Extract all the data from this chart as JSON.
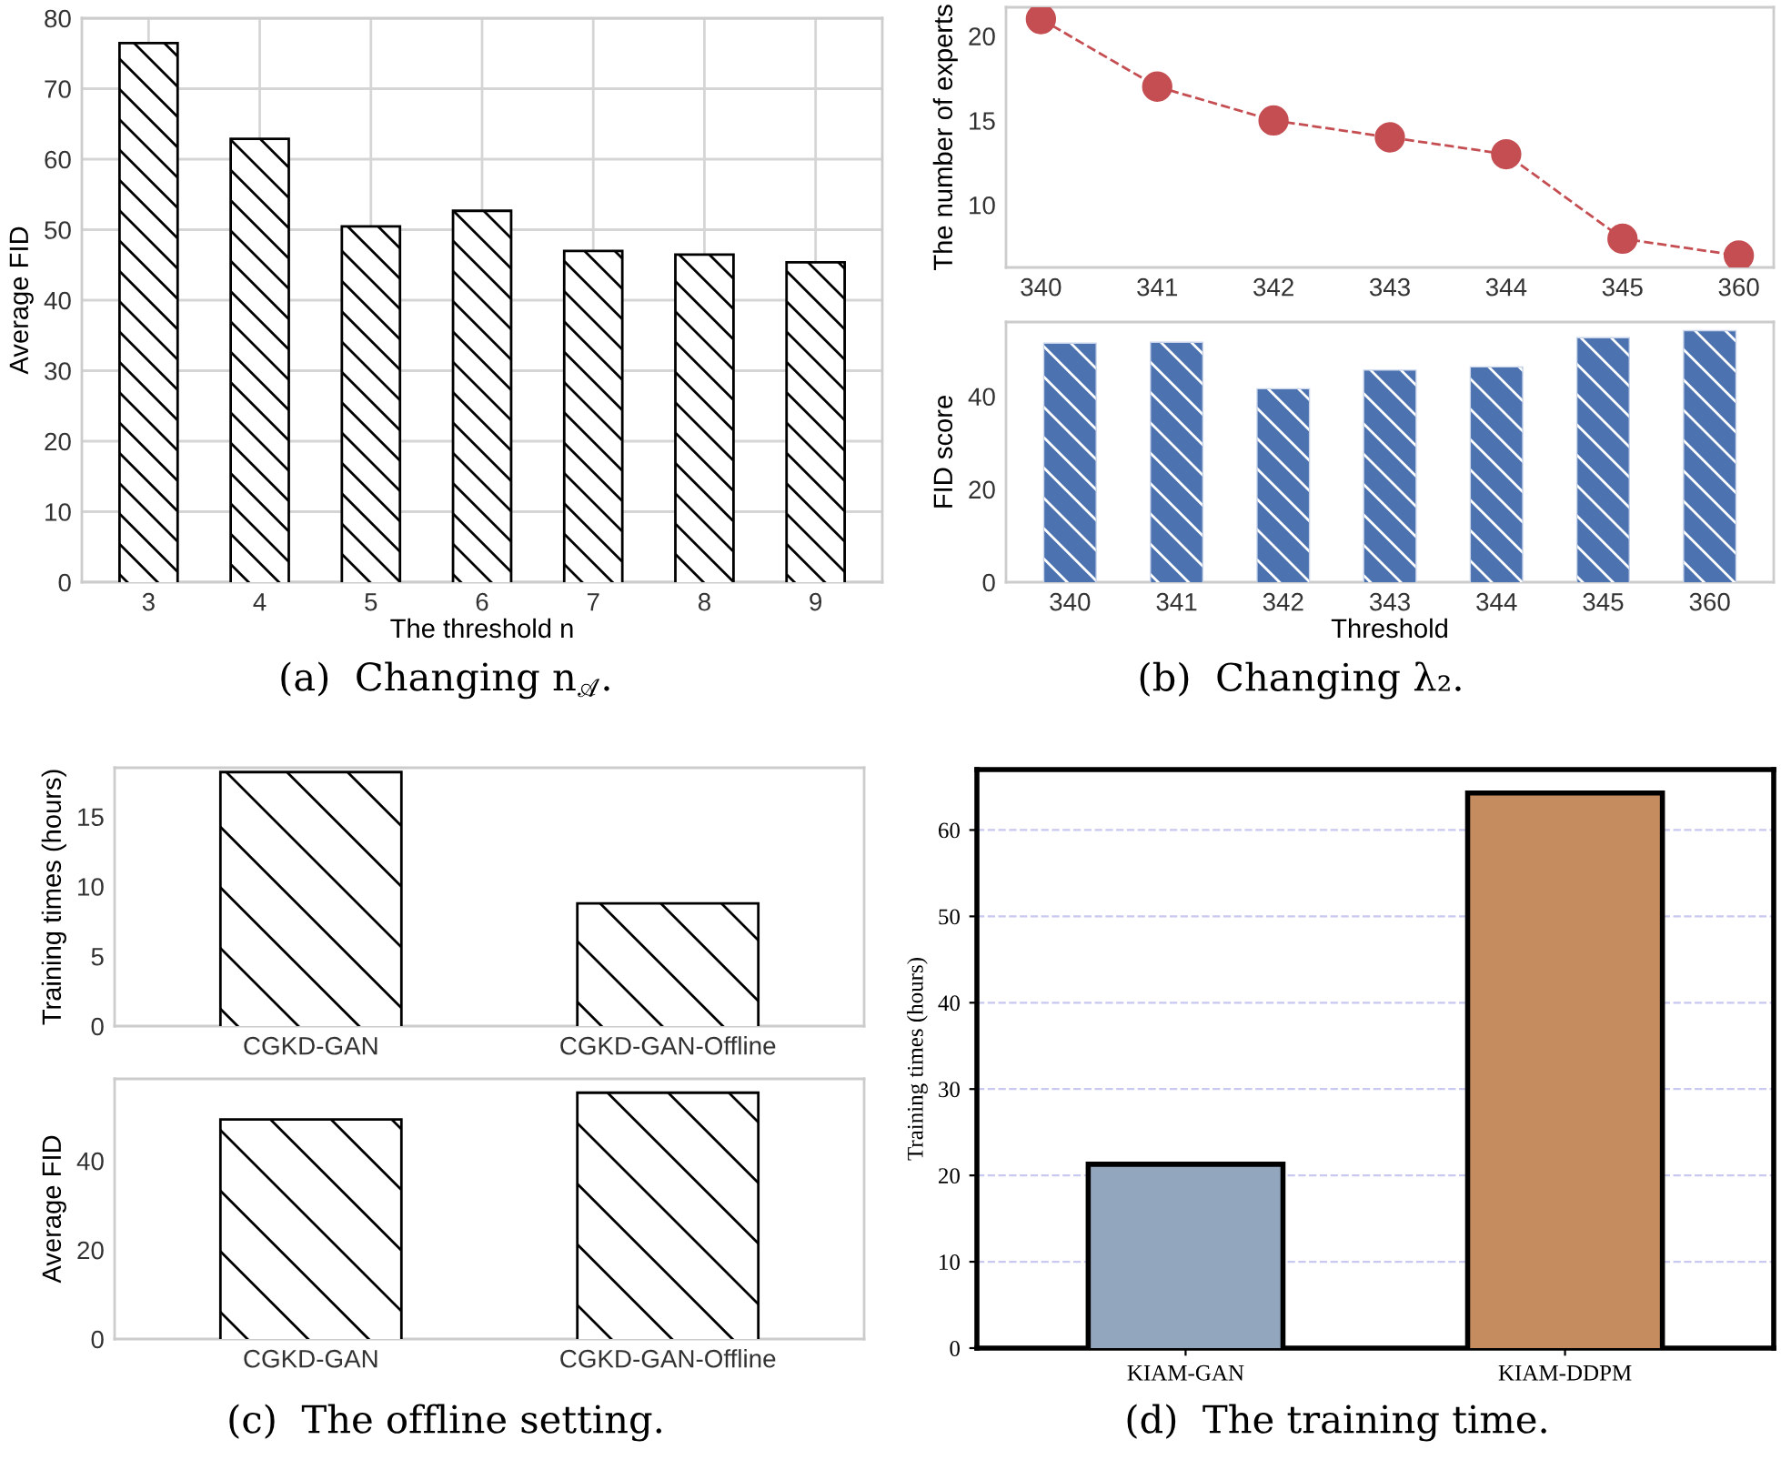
{
  "chart_data": [
    {
      "type": "bar",
      "categories": [
        "3",
        "4",
        "5",
        "6",
        "7",
        "8",
        "9"
      ],
      "values": [
        76.3,
        62.7,
        50.3,
        52.5,
        46.8,
        46.3,
        45.2
      ],
      "color": "#ffffff",
      "xlabel": "The threshold n",
      "ylabel": "Average FID",
      "ylim": [
        0,
        80
      ],
      "yticks": [
        0,
        10,
        20,
        30,
        40,
        50,
        60,
        70,
        80
      ],
      "grid": true,
      "annotations": [
        "(a)  Changing n$_{𝒜}$."
      ]
    },
    {
      "type": "line",
      "categories": [
        "340",
        "341",
        "342",
        "343",
        "344",
        "345",
        "360"
      ],
      "values": [
        21,
        17,
        15,
        14,
        13,
        8,
        7
      ],
      "color": "#c44e52",
      "marker": "circle",
      "line_style": "dashed",
      "ylabel": "The number of experts",
      "ylim": [
        6.3,
        21.7
      ],
      "yticks": [
        10,
        15,
        20
      ],
      "grid": false
    },
    {
      "type": "bar",
      "categories": [
        "340",
        "341",
        "342",
        "343",
        "344",
        "345",
        "360"
      ],
      "values": [
        51.3,
        51.5,
        41.5,
        45.5,
        46.2,
        52.5,
        54
      ],
      "color": "#4c72b0",
      "xlabel": "Threshold",
      "ylabel": "FID score",
      "ylim": [
        0,
        56
      ],
      "yticks": [
        0,
        20,
        40
      ],
      "grid": false,
      "annotations": [
        "(b)  Changing λ₂."
      ]
    },
    {
      "type": "bar",
      "categories": [
        "CGKD-GAN",
        "CGKD-GAN-Offline"
      ],
      "values": [
        18.1,
        8.7
      ],
      "color": "#ffffff",
      "ylabel": "Training times (hours)",
      "ylim": [
        0,
        18.5
      ],
      "yticks": [
        0,
        5,
        10,
        15
      ],
      "grid": false
    },
    {
      "type": "bar",
      "categories": [
        "CGKD-GAN",
        "CGKD-GAN-Offline"
      ],
      "values": [
        49,
        55
      ],
      "color": "#ffffff",
      "ylabel": "Average FID",
      "ylim": [
        0,
        58.4
      ],
      "yticks": [
        0,
        20,
        40
      ],
      "grid": false,
      "annotations": [
        "(c)  The offline setting."
      ]
    },
    {
      "type": "bar",
      "categories": [
        "KIAM-GAN",
        "KIAM-DDPM"
      ],
      "values": [
        21,
        64
      ],
      "colors": [
        "#92a6be",
        "#c48c5f"
      ],
      "ylabel": "Training times (hours)",
      "ylim": [
        0,
        67
      ],
      "yticks": [
        0,
        10,
        20,
        30,
        40,
        50,
        60
      ],
      "grid": "y",
      "annotations": [
        "(d)  The training time."
      ]
    }
  ]
}
